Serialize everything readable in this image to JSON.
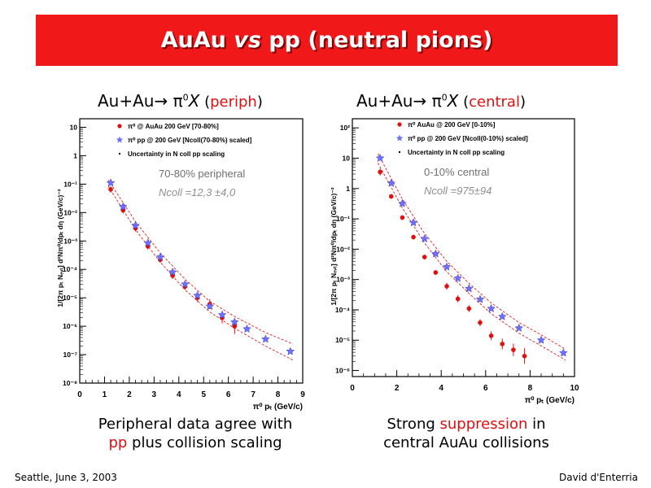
{
  "slide": {
    "title": "AuAu vs pp (neutral pions)",
    "title_parts": [
      "AuAu ",
      "vs",
      " pp (neutral pions)"
    ],
    "footer_left": "Seattle, June  3, 2003",
    "footer_right": "David d'Enterria"
  },
  "colors": {
    "banner": "#f01818",
    "auau": "#e01010",
    "pp": "#7070ff",
    "band": "#e02020",
    "accent_text": "#e01010"
  },
  "panels": [
    {
      "heading": {
        "prefix": "Au+Au→ π",
        "sup": "0",
        "x": "X",
        "paren_open": " (",
        "keyword": "periph",
        "paren_close": ")"
      },
      "caption": {
        "line1": "Peripheral data agree with",
        "line2_red": "pp",
        "line2_rest": " plus collision scaling"
      }
    },
    {
      "heading": {
        "prefix": "Au+Au→ π",
        "sup": "0",
        "x": "X",
        "paren_open": " (",
        "keyword": "central",
        "paren_close": ")"
      },
      "caption": {
        "line1_pre": "Strong ",
        "line1_red": "suppression",
        "line1_post": " in",
        "line2": "central AuAu collisions"
      }
    }
  ],
  "chart_data": [
    {
      "type": "scatter",
      "xlabel": "π⁰ pₜ (GeV/c)",
      "ylabel": "1/[2π pₜ Nₑᵥₜ] d²Nπ⁰/dpₜ dη (GeV/c)⁻²",
      "xlim": [
        0,
        9
      ],
      "ylim_log10": [
        -8,
        1.3
      ],
      "log_y": true,
      "xticks": [
        0,
        1,
        2,
        3,
        4,
        5,
        6,
        7,
        8,
        9
      ],
      "yticks": [
        "10⁻⁸",
        "10⁻⁷",
        "10⁻⁶",
        "10⁻⁵",
        "10⁻⁴",
        "10⁻³",
        "10⁻²",
        "10⁻¹",
        "1",
        "10"
      ],
      "ytick_exps": [
        -8,
        -7,
        -6,
        -5,
        -4,
        -3,
        -2,
        -1,
        0,
        1
      ],
      "legend": [
        "π⁰ @ AuAu 200 GeV [70-80%]",
        "π⁰ pp @ 200 GeV [Ncoll(70-80%) scaled]",
        "Uncertainty in N coll pp scaling"
      ],
      "annotations": [
        "70-80% peripheral",
        "Ncoll =12,3 ±4,0"
      ],
      "series": [
        {
          "name": "π⁰ @ AuAu 200 GeV [70-80%]",
          "marker": "circle",
          "color": "#e01010",
          "x": [
            1.25,
            1.75,
            2.25,
            2.75,
            3.25,
            3.75,
            4.25,
            4.75,
            5.25,
            5.75,
            6.25
          ],
          "y": [
            0.065,
            0.012,
            0.0028,
            0.00065,
            0.00022,
            6e-05,
            2.5e-05,
            1e-05,
            6e-06,
            2e-06,
            1e-06
          ],
          "err": [
            1.3,
            1.3,
            1.3,
            1.3,
            1.3,
            1.3,
            1.3,
            1.4,
            1.5,
            1.6,
            1.9
          ]
        },
        {
          "name": "π⁰ pp @ 200 GeV [Ncoll(70-80%) scaled]",
          "marker": "star",
          "color": "#7070ff",
          "x": [
            1.25,
            1.75,
            2.25,
            2.75,
            3.25,
            3.75,
            4.25,
            4.75,
            5.25,
            5.75,
            6.25,
            6.75,
            7.5,
            8.5
          ],
          "y": [
            0.11,
            0.016,
            0.0035,
            0.00085,
            0.00027,
            8e-05,
            3e-05,
            1.2e-05,
            5e-06,
            2.5e-06,
            1.4e-06,
            8e-07,
            3.5e-07,
            1.3e-07
          ]
        }
      ],
      "band": {
        "x": [
          1.15,
          2.25,
          3.25,
          4.25,
          5.25,
          6.25,
          7.5,
          8.6
        ],
        "upper": [
          0.14,
          0.0048,
          0.00038,
          4.5e-05,
          7.5e-06,
          2.2e-06,
          6e-07,
          2.4e-07
        ],
        "lower": [
          0.085,
          0.0025,
          0.00018,
          1.9e-05,
          3.2e-06,
          8.5e-07,
          2e-07,
          6.5e-08
        ]
      }
    },
    {
      "type": "scatter",
      "xlabel": "π⁰ pₜ (GeV/c)",
      "ylabel": "1/[2π pₜ Nₑᵥₜ] d²Nπ⁰/dpₜ dη (GeV/c)⁻²",
      "xlim": [
        0,
        10
      ],
      "ylim_log10": [
        -6.2,
        2.3
      ],
      "log_y": true,
      "xticks": [
        0,
        2,
        4,
        6,
        8,
        10
      ],
      "yticks": [
        "10⁻⁶",
        "10⁻⁵",
        "10⁻⁴",
        "10⁻³",
        "10⁻²",
        "10⁻¹",
        "1",
        "10",
        "10²"
      ],
      "ytick_exps": [
        -6,
        -5,
        -4,
        -3,
        -2,
        -1,
        0,
        1,
        2
      ],
      "legend": [
        "π⁰ AuAu @ 200 GeV [0-10%]",
        "π⁰ pp @ 200 GeV [Ncoll(0-10%) scaled]",
        "Uncertainty in N coll pp scaling"
      ],
      "annotations": [
        "0-10% central",
        "Ncoll =975±94"
      ],
      "series": [
        {
          "name": "π⁰ AuAu @ 200 GeV [0-10%]",
          "marker": "circle",
          "color": "#e01010",
          "x": [
            1.25,
            1.75,
            2.25,
            2.75,
            3.25,
            3.75,
            4.25,
            4.75,
            5.25,
            5.75,
            6.25,
            6.75,
            7.25,
            7.75
          ],
          "y": [
            3.5,
            0.55,
            0.11,
            0.025,
            0.0055,
            0.0017,
            0.0006,
            0.00023,
            0.00011,
            3.8e-05,
            1.4e-05,
            7.5e-06,
            4.8e-06,
            3e-06
          ],
          "err": [
            1.3,
            1.2,
            1.2,
            1.2,
            1.2,
            1.2,
            1.3,
            1.3,
            1.3,
            1.3,
            1.4,
            1.5,
            1.6,
            1.8
          ]
        },
        {
          "name": "π⁰ pp @ 200 GeV [Ncoll(0-10%) scaled]",
          "marker": "star",
          "color": "#7070ff",
          "x": [
            1.25,
            1.75,
            2.25,
            2.75,
            3.25,
            3.75,
            4.25,
            4.75,
            5.25,
            5.75,
            6.25,
            6.75,
            7.5,
            8.5,
            9.5
          ],
          "y": [
            10.0,
            1.5,
            0.32,
            0.075,
            0.022,
            0.007,
            0.0026,
            0.0011,
            0.0005,
            0.00022,
            0.00011,
            6e-05,
            2.5e-05,
            1e-05,
            3.8e-06
          ]
        }
      ],
      "band": {
        "x": [
          1.15,
          2.25,
          3.25,
          4.25,
          5.25,
          6.25,
          7.5,
          8.5,
          9.6
        ],
        "upper": [
          14.0,
          0.45,
          0.033,
          0.004,
          0.00075,
          0.00017,
          3.8e-05,
          1.5e-05,
          5e-06
        ],
        "lower": [
          7.0,
          0.23,
          0.016,
          0.0018,
          0.00035,
          7.5e-05,
          1.7e-05,
          6.5e-06,
          2.2e-06
        ]
      }
    }
  ]
}
